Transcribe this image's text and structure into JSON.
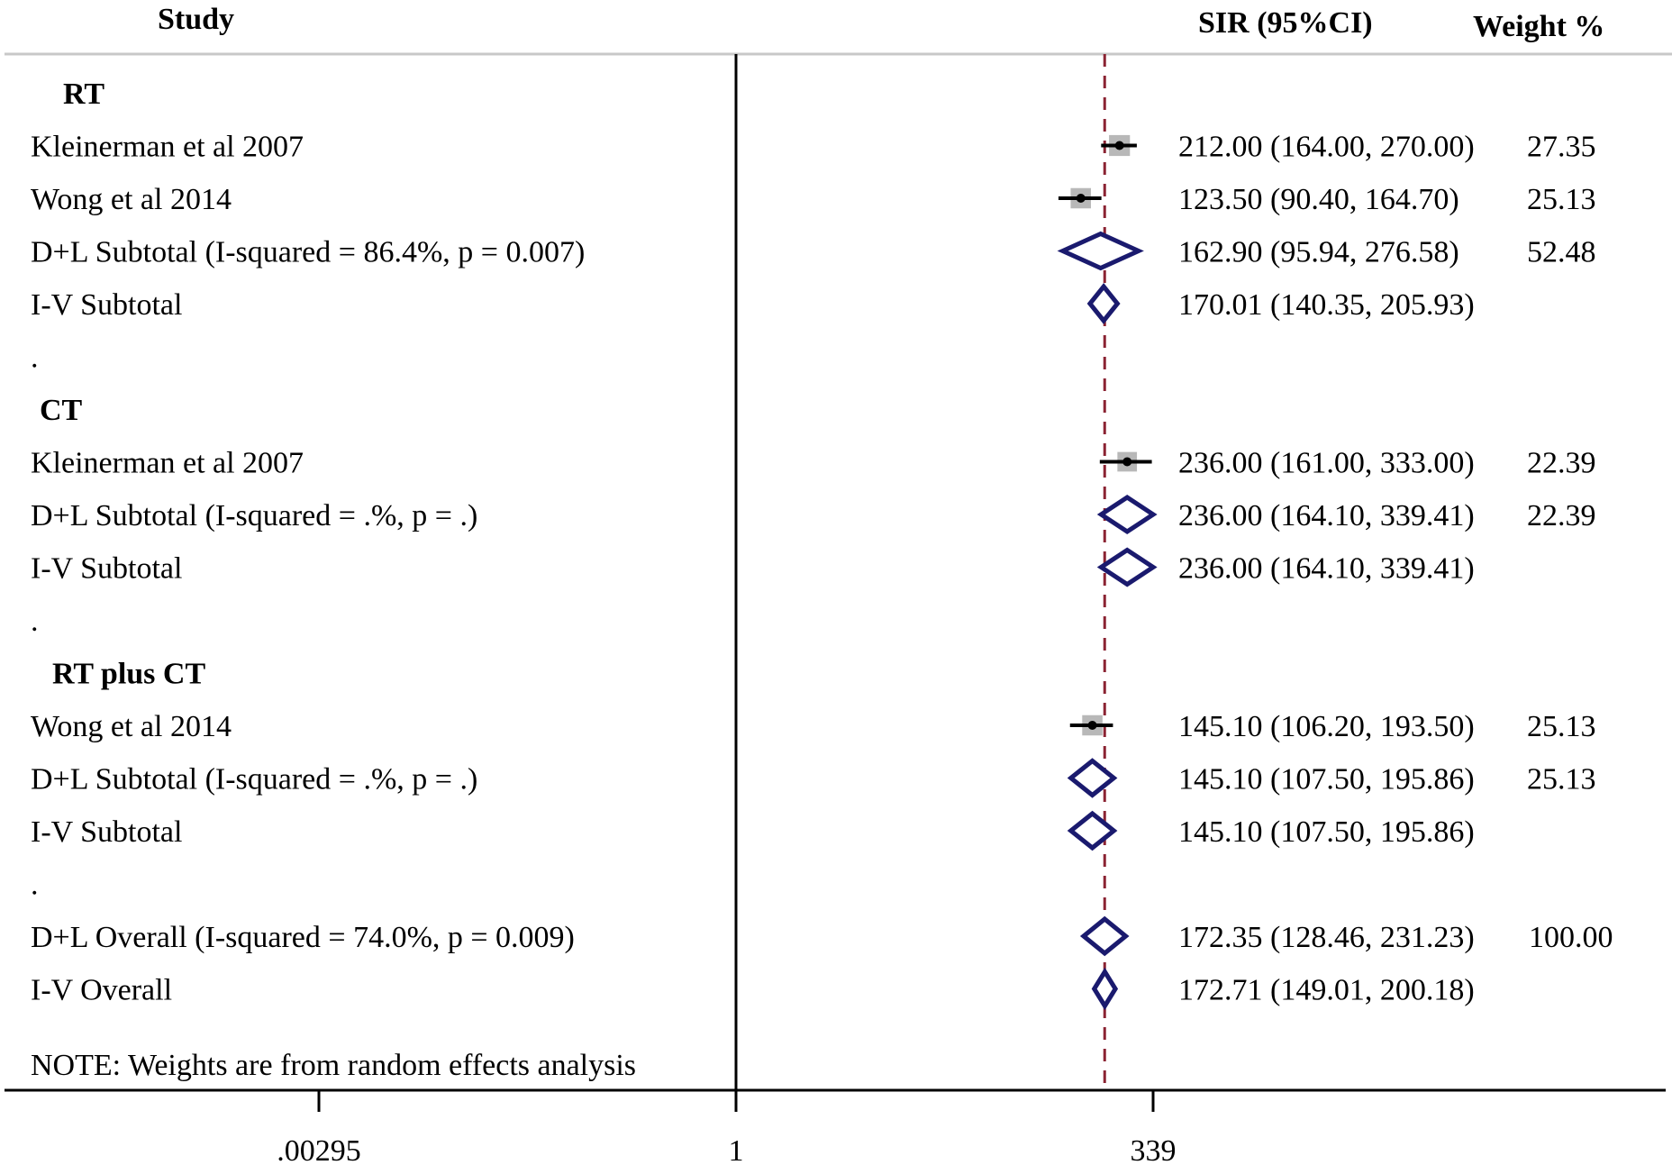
{
  "chart_data": {
    "type": "forest",
    "header": {
      "study": "Study",
      "effect": "SIR (95%CI)",
      "weight": "Weight %"
    },
    "x_axis": {
      "scale": "log",
      "ticks": [
        {
          "value": 0.00295,
          "label": ".00295"
        },
        {
          "value": 1,
          "label": "1"
        },
        {
          "value": 339,
          "label": "339"
        }
      ]
    },
    "reference_line": 1,
    "overall_line": 172.35,
    "note": "NOTE: Weights are from random effects analysis",
    "rows": [
      {
        "kind": "group",
        "label": "RT"
      },
      {
        "kind": "study",
        "label": "Kleinerman et al 2007",
        "est": 212.0,
        "lo": 164.0,
        "hi": 270.0,
        "text": "212.00 (164.00, 270.00)",
        "weight": "27.35",
        "w": 27.35
      },
      {
        "kind": "study",
        "label": "Wong et al 2014",
        "est": 123.5,
        "lo": 90.4,
        "hi": 164.7,
        "text": "123.50 (90.40, 164.70)",
        "weight": "25.13",
        "w": 25.13
      },
      {
        "kind": "pooled",
        "label": "D+L Subtotal  (I-squared = 86.4%, p = 0.007)",
        "est": 162.9,
        "lo": 95.94,
        "hi": 276.58,
        "text": "162.90 (95.94, 276.58)",
        "weight": "52.48"
      },
      {
        "kind": "pooled",
        "label": "I-V Subtotal",
        "est": 170.01,
        "lo": 140.35,
        "hi": 205.93,
        "text": "170.01 (140.35, 205.93)",
        "weight": ""
      },
      {
        "kind": "dot",
        "label": "."
      },
      {
        "kind": "group",
        "label": "CT"
      },
      {
        "kind": "study",
        "label": "Kleinerman et al 2007",
        "est": 236.0,
        "lo": 161.0,
        "hi": 333.0,
        "text": "236.00 (161.00, 333.00)",
        "weight": "22.39",
        "w": 22.39
      },
      {
        "kind": "pooled",
        "label": "D+L Subtotal  (I-squared = .%, p = .)",
        "est": 236.0,
        "lo": 164.1,
        "hi": 339.41,
        "text": "236.00 (164.10, 339.41)",
        "weight": "22.39"
      },
      {
        "kind": "pooled",
        "label": "I-V Subtotal",
        "est": 236.0,
        "lo": 164.1,
        "hi": 339.41,
        "text": "236.00 (164.10, 339.41)",
        "weight": ""
      },
      {
        "kind": "dot",
        "label": "."
      },
      {
        "kind": "group",
        "label": "RT plus CT"
      },
      {
        "kind": "study",
        "label": "Wong et al 2014",
        "est": 145.1,
        "lo": 106.2,
        "hi": 193.5,
        "text": "145.10 (106.20, 193.50)",
        "weight": "25.13",
        "w": 25.13
      },
      {
        "kind": "pooled",
        "label": "D+L Subtotal  (I-squared = .%, p = .)",
        "est": 145.1,
        "lo": 107.5,
        "hi": 195.86,
        "text": "145.10 (107.50, 195.86)",
        "weight": "25.13"
      },
      {
        "kind": "pooled",
        "label": "I-V Subtotal",
        "est": 145.1,
        "lo": 107.5,
        "hi": 195.86,
        "text": "145.10 (107.50, 195.86)",
        "weight": ""
      },
      {
        "kind": "dot",
        "label": "."
      },
      {
        "kind": "pooled",
        "label": "D+L Overall  (I-squared = 74.0%, p = 0.009)",
        "est": 172.35,
        "lo": 128.46,
        "hi": 231.23,
        "text": "172.35 (128.46, 231.23)",
        "weight": "100.00"
      },
      {
        "kind": "pooled",
        "label": "I-V Overall",
        "est": 172.71,
        "lo": 149.01,
        "hi": 200.18,
        "text": "172.71 (149.01, 200.18)",
        "weight": ""
      }
    ],
    "colors": {
      "diamond": "#1a1a6e",
      "overall_line": "#8b2332",
      "box": "#b8b8b8",
      "ci": "#000000"
    }
  }
}
